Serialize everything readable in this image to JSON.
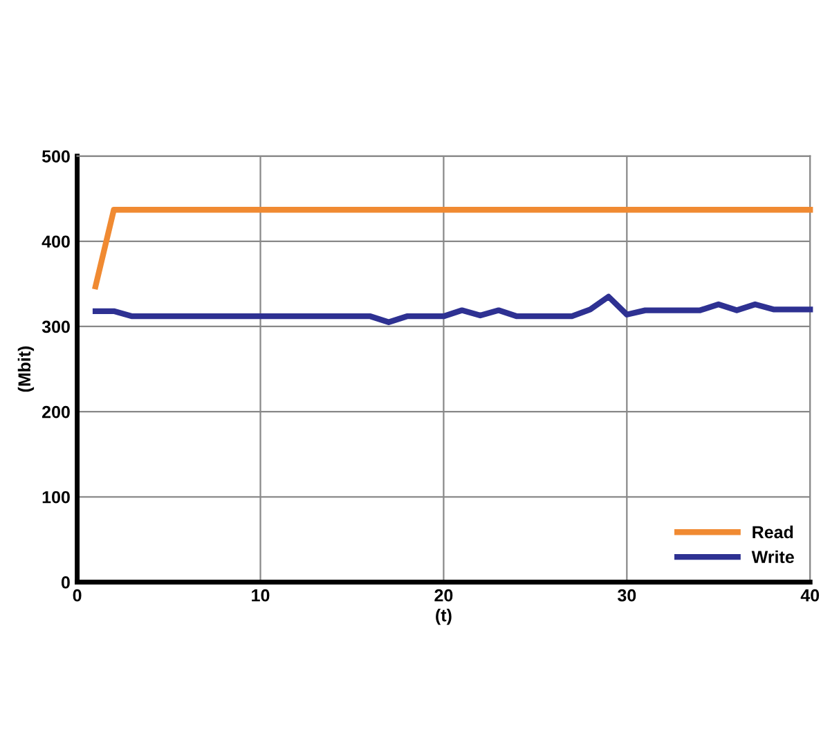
{
  "chart_data": {
    "type": "line",
    "xlabel": "(t)",
    "ylabel": "(Mbit)",
    "xlim": [
      0,
      40
    ],
    "ylim": [
      0,
      500
    ],
    "xticks": [
      0,
      10,
      20,
      30,
      40
    ],
    "yticks": [
      0,
      100,
      200,
      300,
      400,
      500
    ],
    "grid": true,
    "legend": "bottom right",
    "marker": "none",
    "line_style": "solid",
    "series": [
      {
        "name": "Read",
        "color": "#f08a32",
        "x": [
          1,
          2,
          40
        ],
        "values": [
          347,
          437,
          437
        ]
      },
      {
        "name": "Write",
        "color": "#2e3192",
        "x": [
          1,
          2,
          3,
          16,
          17,
          18,
          20,
          21,
          22,
          23,
          24,
          27,
          28,
          29,
          30,
          31,
          34,
          35,
          36,
          37,
          38,
          40
        ],
        "values": [
          318,
          318,
          312,
          312,
          305,
          312,
          312,
          319,
          313,
          319,
          312,
          312,
          320,
          335,
          314,
          319,
          319,
          326,
          319,
          326,
          320,
          320
        ]
      }
    ]
  }
}
